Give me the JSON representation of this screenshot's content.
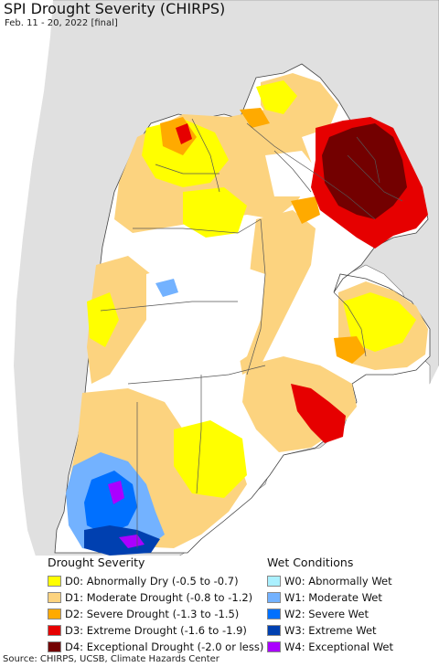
{
  "title": "SPI Drought Severity (CHIRPS)",
  "subtitle": "Feb. 11 - 20, 2022 [final]",
  "legend": {
    "drought": {
      "heading": "Drought Severity",
      "items": [
        {
          "label": "D0: Abnormally Dry (-0.5 to -0.7)",
          "color": "#ffff00"
        },
        {
          "label": "D1: Moderate Drought (-0.8 to -1.2)",
          "color": "#fcd37f"
        },
        {
          "label": "D2: Severe Drought (-1.3 to -1.5)",
          "color": "#ffaa00"
        },
        {
          "label": "D3: Extreme Drought (-1.6 to -1.9)",
          "color": "#e60000"
        },
        {
          "label": "D4: Exceptional Drought (-2.0 or less)",
          "color": "#730000"
        }
      ]
    },
    "wet": {
      "heading": "Wet Conditions",
      "items": [
        {
          "label": "W0: Abnormally Wet",
          "color": "#aaf0ff"
        },
        {
          "label": "W1: Moderate Wet",
          "color": "#73b2ff"
        },
        {
          "label": "W2: Severe Wet",
          "color": "#0070ff"
        },
        {
          "label": "W3: Extreme Wet",
          "color": "#0040b0"
        },
        {
          "label": "W4: Exceptional Wet",
          "color": "#aa00ff"
        }
      ]
    }
  },
  "colors": {
    "ocean": "#ffffff",
    "outside_land": "#e0e0e0",
    "border": "#555555"
  },
  "source": "Source: CHIRPS, UCSB, Climate Hazards Center"
}
